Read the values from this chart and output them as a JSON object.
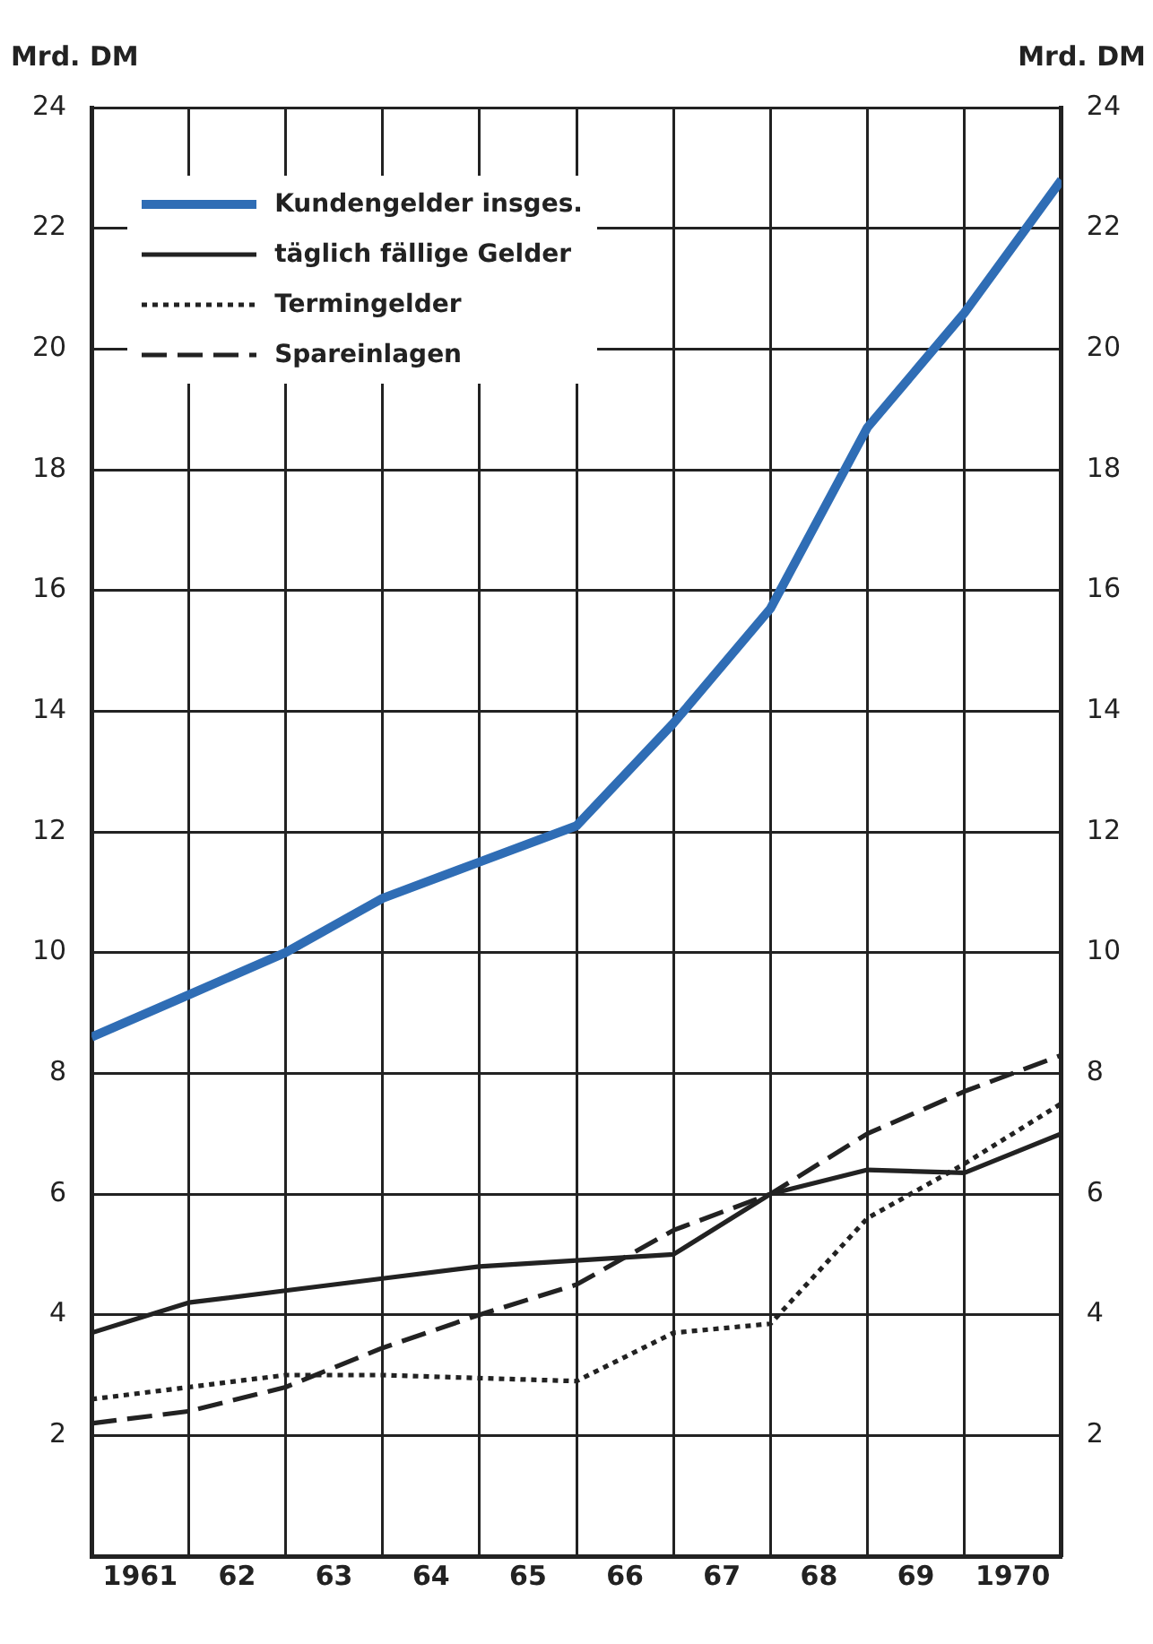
{
  "chart_data": {
    "type": "line",
    "ylabel": "Mrd. DM",
    "y2label": "Mrd. DM",
    "x": [
      1960.5,
      1961.5,
      1962.5,
      1963.5,
      1964.5,
      1965.5,
      1966.5,
      1967.5,
      1968.5,
      1969.5,
      1970.5
    ],
    "xlim": [
      1960.5,
      1970.5
    ],
    "xticks": [
      {
        "value": 1960.5,
        "label": null
      },
      {
        "value": 1961,
        "label": "1961"
      },
      {
        "value": 1961.5,
        "label": null
      },
      {
        "value": 1962,
        "label": "62"
      },
      {
        "value": 1962.5,
        "label": null
      },
      {
        "value": 1963,
        "label": "63"
      },
      {
        "value": 1963.5,
        "label": null
      },
      {
        "value": 1964,
        "label": "64"
      },
      {
        "value": 1964.5,
        "label": null
      },
      {
        "value": 1965,
        "label": "65"
      },
      {
        "value": 1965.5,
        "label": null
      },
      {
        "value": 1966,
        "label": "66"
      },
      {
        "value": 1966.5,
        "label": null
      },
      {
        "value": 1967,
        "label": "67"
      },
      {
        "value": 1967.5,
        "label": null
      },
      {
        "value": 1968,
        "label": "68"
      },
      {
        "value": 1968.5,
        "label": null
      },
      {
        "value": 1969,
        "label": "69"
      },
      {
        "value": 1969.5,
        "label": null
      },
      {
        "value": 1970,
        "label": "1970"
      },
      {
        "value": 1970.5,
        "label": null
      }
    ],
    "ylim": [
      0,
      24
    ],
    "yticks": [
      2,
      4,
      6,
      8,
      10,
      12,
      14,
      16,
      18,
      20,
      22,
      24
    ],
    "y2lim": [
      0,
      24
    ],
    "y2ticks": [
      2,
      4,
      6,
      8,
      10,
      12,
      14,
      16,
      18,
      20,
      22,
      24
    ],
    "grid": true,
    "legend": "top left",
    "marker": "none",
    "series": [
      {
        "name": "Kundengelder insges.",
        "color": "#2f6db5",
        "line_style": "solid",
        "values": [
          8.6,
          9.3,
          10.0,
          10.9,
          11.5,
          12.1,
          13.8,
          15.7,
          18.7,
          20.6,
          22.8
        ]
      },
      {
        "name": "täglich fällige Gelder",
        "color": "#222222",
        "line_style": "solid",
        "values": [
          3.7,
          4.2,
          4.4,
          4.6,
          4.8,
          4.9,
          5.0,
          6.0,
          6.4,
          6.35,
          7.0
        ]
      },
      {
        "name": "Termingelder",
        "color": "#222222",
        "line_style": "dotted",
        "values": [
          2.6,
          2.8,
          3.0,
          3.0,
          2.95,
          2.9,
          3.7,
          3.85,
          5.6,
          6.5,
          7.5
        ]
      },
      {
        "name": "Spareinlagen",
        "color": "#222222",
        "line_style": "dashed",
        "values": [
          2.2,
          2.4,
          2.8,
          3.45,
          4.0,
          4.5,
          5.4,
          6.0,
          7.0,
          7.7,
          8.3
        ]
      }
    ]
  }
}
